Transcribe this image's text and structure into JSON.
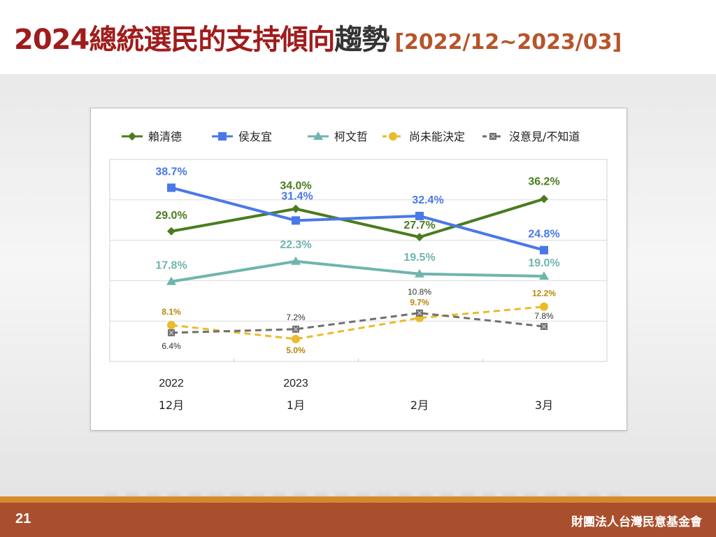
{
  "header": {
    "title_main": "2024總統選民的支持傾向",
    "title_dark": "趨勢",
    "title_range": "[2022/12~2023/03]"
  },
  "footer": {
    "page_number": "21",
    "organization": "財團法人台灣民意基金會"
  },
  "chart_data": {
    "type": "line",
    "categories": [
      "12月",
      "1月",
      "2月",
      "3月"
    ],
    "year_labels": [
      "2022",
      "2023",
      "",
      ""
    ],
    "ylim": [
      0,
      45
    ],
    "grid": true,
    "legend": "top",
    "series": [
      {
        "name": "賴清德",
        "values": [
          29.0,
          34.0,
          27.7,
          36.2
        ],
        "labels": [
          "29.0%",
          "34.0%",
          "27.7%",
          "36.2%"
        ],
        "color": "#4a7c1e",
        "marker": "diamond",
        "dash": false
      },
      {
        "name": "侯友宜",
        "values": [
          38.7,
          31.4,
          32.4,
          24.8
        ],
        "labels": [
          "38.7%",
          "31.4%",
          "32.4%",
          "24.8%"
        ],
        "color": "#4a78e8",
        "marker": "square",
        "dash": false
      },
      {
        "name": "柯文哲",
        "values": [
          17.8,
          22.3,
          19.5,
          19.0
        ],
        "labels": [
          "17.8%",
          "22.3%",
          "19.5%",
          "19.0%"
        ],
        "color": "#6fb5ae",
        "marker": "triangle",
        "dash": false
      },
      {
        "name": "尚未能決定",
        "values": [
          8.1,
          5.0,
          9.7,
          12.2
        ],
        "labels": [
          "8.1%",
          "5.0%",
          "9.7%",
          "12.2%"
        ],
        "color": "#eabb2a",
        "marker": "circle",
        "dash": true
      },
      {
        "name": "沒意見/不知道",
        "values": [
          6.4,
          7.2,
          10.8,
          7.8
        ],
        "labels": [
          "6.4%",
          "7.2%",
          "10.8%",
          "7.8%"
        ],
        "color": "#6f6f6f",
        "marker": "xsquare",
        "dash": true
      }
    ]
  }
}
